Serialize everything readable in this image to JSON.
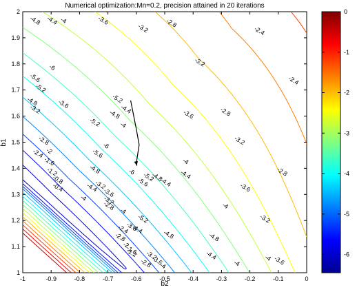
{
  "chart_data": {
    "type": "contour",
    "title": "Numerical optimization:Mn=0.2, precision attained in 20 iterations",
    "xlabel": "b2",
    "ylabel": "b1",
    "xlim": [
      -1,
      0
    ],
    "ylim": [
      1,
      2
    ],
    "x_ticks": [
      "-1",
      "-0.9",
      "-0.8",
      "-0.7",
      "-0.6",
      "-0.5",
      "-0.4",
      "-0.3",
      "-0.2",
      "-0.1",
      "0"
    ],
    "y_ticks": [
      "1",
      "1.1",
      "1.2",
      "1.3",
      "1.4",
      "1.5",
      "1.6",
      "1.7",
      "1.8",
      "1.9",
      "2"
    ],
    "grid": false,
    "colorbar": {
      "colormap": "jet",
      "range": [
        -6.45,
        0
      ],
      "ticks": [
        "0",
        "-1",
        "-2",
        "-3",
        "-4",
        "-5",
        "-6"
      ]
    },
    "contour_levels": [
      -6,
      -5.6,
      -5.2,
      -4.8,
      -4.4,
      -4,
      -3.6,
      -3.2,
      -2.8,
      -2.4,
      -2,
      -1.6,
      -1.2,
      -0.8,
      -0.4
    ],
    "contour_labels": [
      {
        "text": "-2.4",
        "x": -0.17,
        "y": 1.92
      },
      {
        "text": "-2.8",
        "x": -0.48,
        "y": 1.95
      },
      {
        "text": "-3.2",
        "x": -0.58,
        "y": 1.93
      },
      {
        "text": "-3.6",
        "x": -0.72,
        "y": 1.96
      },
      {
        "text": "-4",
        "x": -0.86,
        "y": 1.96
      },
      {
        "text": "-4.4",
        "x": -0.9,
        "y": 1.96
      },
      {
        "text": "-4.8",
        "x": -0.96,
        "y": 1.96
      },
      {
        "text": "-3.2",
        "x": -0.38,
        "y": 1.8
      },
      {
        "text": "-3.6",
        "x": -0.42,
        "y": 1.6
      },
      {
        "text": "-2.8",
        "x": -0.29,
        "y": 1.61
      },
      {
        "text": "-2.4",
        "x": -0.05,
        "y": 1.73
      },
      {
        "text": "-2.8",
        "x": -0.09,
        "y": 1.38
      },
      {
        "text": "-3.2",
        "x": -0.24,
        "y": 1.5
      },
      {
        "text": "-3.6",
        "x": -0.22,
        "y": 1.32
      },
      {
        "text": "-3.2",
        "x": -0.15,
        "y": 1.2
      },
      {
        "text": "-3.6",
        "x": -0.1,
        "y": 1.04
      },
      {
        "text": "-4",
        "x": -0.29,
        "y": 1.25
      },
      {
        "text": "-4",
        "x": -0.43,
        "y": 1.42
      },
      {
        "text": "-4",
        "x": -0.65,
        "y": 1.56
      },
      {
        "text": "-4.4",
        "x": -0.43,
        "y": 1.37
      },
      {
        "text": "-4.8",
        "x": -0.33,
        "y": 1.13
      },
      {
        "text": "-4.4",
        "x": -0.34,
        "y": 1.06
      },
      {
        "text": "-4",
        "x": -0.14,
        "y": 1.05
      },
      {
        "text": "-4",
        "x": -0.25,
        "y": 1.03
      },
      {
        "text": "-6",
        "x": -0.9,
        "y": 1.78
      },
      {
        "text": "-5.6",
        "x": -0.96,
        "y": 1.74
      },
      {
        "text": "-5.2",
        "x": -0.94,
        "y": 1.7
      },
      {
        "text": "-4.8",
        "x": -0.97,
        "y": 1.65
      },
      {
        "text": "-5.2",
        "x": -0.75,
        "y": 1.57
      },
      {
        "text": "-4.8",
        "x": -0.68,
        "y": 1.6
      },
      {
        "text": "-5.2",
        "x": -0.67,
        "y": 1.66
      },
      {
        "text": "-4.4",
        "x": -0.64,
        "y": 1.62
      },
      {
        "text": "-6",
        "x": -0.71,
        "y": 1.48
      },
      {
        "text": "-5.6",
        "x": -0.74,
        "y": 1.45
      },
      {
        "text": "-4.8",
        "x": -0.75,
        "y": 1.39
      },
      {
        "text": "-4.4",
        "x": -0.76,
        "y": 1.32
      },
      {
        "text": "-4",
        "x": -0.79,
        "y": 1.28
      },
      {
        "text": "-6",
        "x": -0.62,
        "y": 1.38
      },
      {
        "text": "-5.6",
        "x": -0.58,
        "y": 1.34
      },
      {
        "text": "-5.2",
        "x": -0.56,
        "y": 1.36
      },
      {
        "text": "-4.8",
        "x": -0.53,
        "y": 1.36
      },
      {
        "text": "-4.4",
        "x": -0.5,
        "y": 1.34
      },
      {
        "text": "-5.2",
        "x": -0.58,
        "y": 1.2
      },
      {
        "text": "-4.4",
        "x": -0.6,
        "y": 1.16
      },
      {
        "text": "-4.8",
        "x": -0.49,
        "y": 1.14
      },
      {
        "text": "-4",
        "x": -0.65,
        "y": 1.23
      },
      {
        "text": "-3.6",
        "x": -0.7,
        "y": 1.3
      },
      {
        "text": "-3.2",
        "x": -0.73,
        "y": 1.33
      },
      {
        "text": "-3.6",
        "x": -0.86,
        "y": 1.64
      },
      {
        "text": "-3.2",
        "x": -0.96,
        "y": 1.62
      },
      {
        "text": "-2.8",
        "x": -0.93,
        "y": 1.5
      },
      {
        "text": "-2.4",
        "x": -0.95,
        "y": 1.45
      },
      {
        "text": "-2",
        "x": -0.91,
        "y": 1.46
      },
      {
        "text": "-1.6",
        "x": -0.91,
        "y": 1.42
      },
      {
        "text": "-1.2",
        "x": -0.9,
        "y": 1.38
      },
      {
        "text": "-0.8",
        "x": -0.88,
        "y": 1.35
      },
      {
        "text": "-0.4",
        "x": -0.88,
        "y": 1.32
      },
      {
        "text": "-3.2",
        "x": -0.7,
        "y": 1.27
      },
      {
        "text": "-2.8",
        "x": -0.7,
        "y": 1.25
      },
      {
        "text": "-2.4",
        "x": -0.65,
        "y": 1.16
      },
      {
        "text": "-2.8",
        "x": -0.66,
        "y": 1.13
      },
      {
        "text": "-2",
        "x": -0.64,
        "y": 1.1
      },
      {
        "text": "-1.6",
        "x": -0.62,
        "y": 1.08
      },
      {
        "text": "-1.2",
        "x": -0.62,
        "y": 1.07
      },
      {
        "text": "-3.6",
        "x": -0.62,
        "y": 1.17
      },
      {
        "text": "-3.2",
        "x": -0.55,
        "y": 1.06
      },
      {
        "text": "-3.6",
        "x": -0.53,
        "y": 1.04
      },
      {
        "text": "-2.8",
        "x": -0.57,
        "y": 1.03
      },
      {
        "text": "-4",
        "x": -0.51,
        "y": 1.02
      }
    ],
    "optimization_path": [
      [
        -0.62,
        1.66
      ],
      [
        -0.6,
        1.55
      ],
      [
        -0.59,
        1.49
      ],
      [
        -0.6,
        1.42
      ],
      [
        -0.598,
        1.41
      ]
    ]
  }
}
